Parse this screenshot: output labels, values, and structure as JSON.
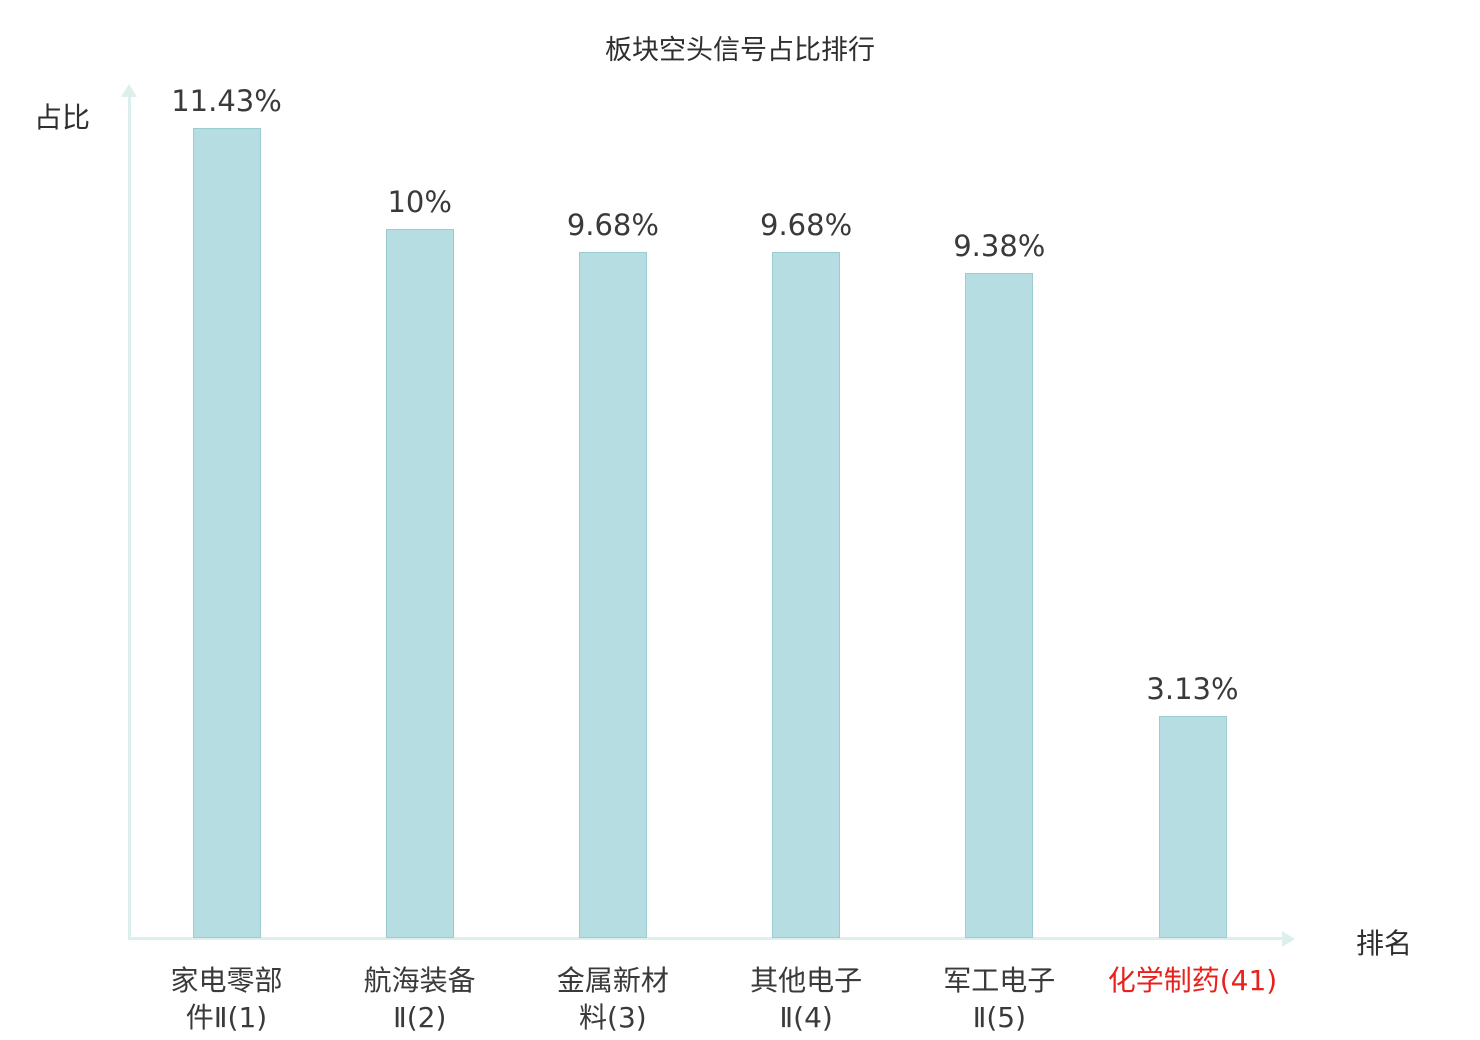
{
  "chart_data": {
    "type": "bar",
    "title": "板块空头信号占比排行",
    "ylabel": "占比",
    "xlabel": "排名",
    "categories": [
      "家电零部件Ⅱ(1)",
      "航海装备Ⅱ(2)",
      "金属新材料(3)",
      "其他电子Ⅱ(4)",
      "军工电子Ⅱ(5)",
      "化学制药(41)"
    ],
    "category_lines": [
      [
        "家电零部",
        "件Ⅱ(1)"
      ],
      [
        "航海装备",
        "Ⅱ(2)"
      ],
      [
        "金属新材",
        "料(3)"
      ],
      [
        "其他电子",
        "Ⅱ(4)"
      ],
      [
        "军工电子",
        "Ⅱ(5)"
      ],
      [
        "化学制药(41)"
      ]
    ],
    "values": [
      11.43,
      10,
      9.68,
      9.68,
      9.38,
      3.13
    ],
    "value_labels": [
      "11.43%",
      "10%",
      "9.68%",
      "9.68%",
      "9.38%",
      "3.13%"
    ],
    "highlight_index": 5,
    "ylim": [
      0,
      12
    ],
    "grid": false,
    "legend": "none",
    "colors": {
      "bar_fill": "#b6dde1",
      "bar_border": "#9bccd2",
      "axis": "#dcefec",
      "text": "#3a3a3a",
      "highlight_text": "#e8211c",
      "title_text": "#2f2f2f"
    }
  }
}
